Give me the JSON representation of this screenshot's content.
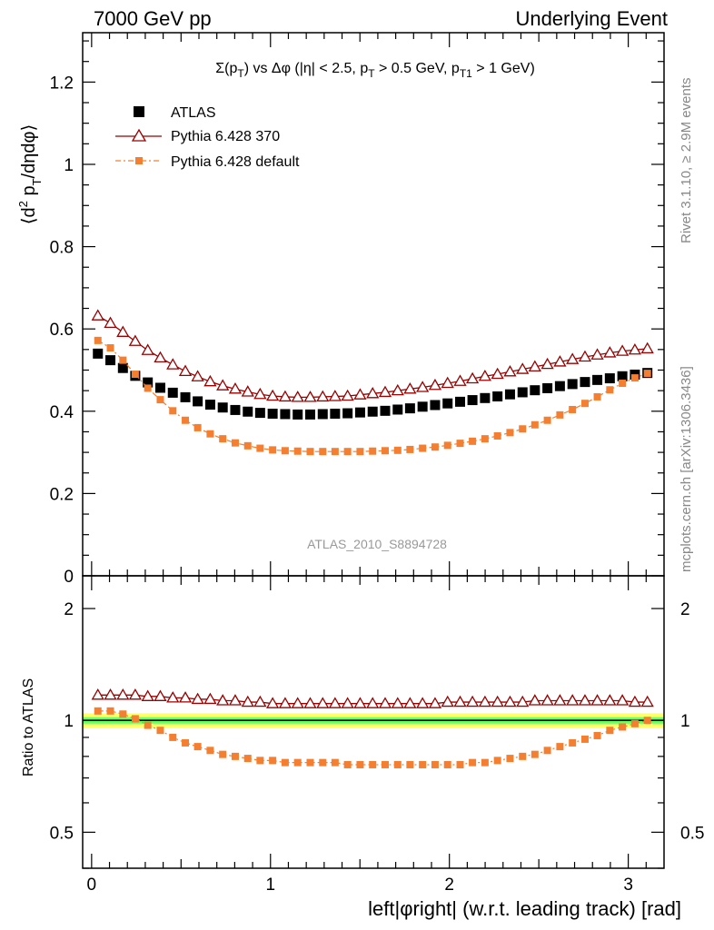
{
  "header": {
    "left": "7000 GeV pp",
    "right": "Underlying Event"
  },
  "side_labels": {
    "rivet": "Rivet 3.1.10, ≥ 2.9M events",
    "mcplots": "mcplots.cern.ch [arXiv:1306.3436]"
  },
  "colors": {
    "atlas": "#000000",
    "pythia_370": "#990000",
    "pythia_default": "#f57f30",
    "band_green": "#66ff66",
    "band_yellow": "#ffff66"
  },
  "chart_data": [
    {
      "type": "scatter",
      "panel": "main",
      "title": "Σ(p_T) vs Δφ (|η| < 2.5, p_T > 0.5 GeV, p_T1 > 1 GeV)",
      "ylabel": "⟨d² p_T/dηdφ⟩",
      "xlim": [
        -0.05,
        3.2
      ],
      "ylim": [
        0,
        1.32
      ],
      "yticks": [
        "0",
        "0.2",
        "0.4",
        "0.6",
        "0.8",
        "1",
        "1.2"
      ],
      "watermark": "ATLAS_2010_S8894728",
      "legend_position": "top-left",
      "x": [
        0.035,
        0.105,
        0.175,
        0.244,
        0.314,
        0.384,
        0.454,
        0.524,
        0.593,
        0.663,
        0.733,
        0.803,
        0.873,
        0.942,
        1.012,
        1.082,
        1.152,
        1.222,
        1.292,
        1.361,
        1.431,
        1.501,
        1.571,
        1.641,
        1.711,
        1.78,
        1.85,
        1.92,
        1.99,
        2.06,
        2.129,
        2.199,
        2.269,
        2.339,
        2.409,
        2.478,
        2.548,
        2.618,
        2.688,
        2.758,
        2.827,
        2.897,
        2.967,
        3.037,
        3.107
      ],
      "series": [
        {
          "name": "ATLAS",
          "marker": "square",
          "values": [
            0.54,
            0.524,
            0.505,
            0.486,
            0.47,
            0.457,
            0.445,
            0.434,
            0.424,
            0.416,
            0.409,
            0.403,
            0.399,
            0.396,
            0.394,
            0.393,
            0.392,
            0.392,
            0.393,
            0.394,
            0.395,
            0.397,
            0.399,
            0.401,
            0.404,
            0.407,
            0.411,
            0.415,
            0.419,
            0.423,
            0.427,
            0.432,
            0.436,
            0.441,
            0.446,
            0.451,
            0.456,
            0.461,
            0.466,
            0.471,
            0.476,
            0.48,
            0.485,
            0.489,
            0.493
          ]
        },
        {
          "name": "Pythia 6.428 370",
          "marker": "triangle",
          "values": [
            0.632,
            0.614,
            0.592,
            0.57,
            0.548,
            0.53,
            0.513,
            0.497,
            0.484,
            0.472,
            0.462,
            0.454,
            0.447,
            0.441,
            0.437,
            0.435,
            0.434,
            0.434,
            0.435,
            0.436,
            0.437,
            0.44,
            0.443,
            0.446,
            0.45,
            0.454,
            0.458,
            0.463,
            0.468,
            0.473,
            0.479,
            0.485,
            0.49,
            0.496,
            0.502,
            0.508,
            0.514,
            0.52,
            0.526,
            0.532,
            0.537,
            0.542,
            0.546,
            0.549,
            0.552
          ]
        },
        {
          "name": "Pythia 6.428 default",
          "marker": "small-square",
          "values": [
            0.572,
            0.554,
            0.524,
            0.49,
            0.456,
            0.428,
            0.401,
            0.378,
            0.36,
            0.345,
            0.333,
            0.323,
            0.316,
            0.31,
            0.306,
            0.304,
            0.303,
            0.302,
            0.302,
            0.302,
            0.302,
            0.302,
            0.303,
            0.304,
            0.305,
            0.307,
            0.31,
            0.313,
            0.317,
            0.322,
            0.327,
            0.333,
            0.34,
            0.348,
            0.357,
            0.367,
            0.378,
            0.391,
            0.404,
            0.419,
            0.435,
            0.452,
            0.468,
            0.481,
            0.492
          ]
        }
      ]
    },
    {
      "type": "scatter",
      "panel": "ratio",
      "ylabel": "Ratio to ATLAS",
      "xlabel": "left|φright| (w.r.t. leading track) [rad]",
      "xlim": [
        -0.05,
        3.2
      ],
      "ylim": [
        0.4,
        2.45
      ],
      "ylog": true,
      "yticks": [
        "0.5",
        "1",
        "2"
      ],
      "xticks": [
        "0",
        "1",
        "2",
        "3"
      ],
      "series": [
        {
          "name": "Pythia 6.428 370",
          "values": [
            1.17,
            1.17,
            1.17,
            1.17,
            1.16,
            1.16,
            1.15,
            1.15,
            1.14,
            1.14,
            1.13,
            1.13,
            1.12,
            1.12,
            1.11,
            1.11,
            1.11,
            1.11,
            1.11,
            1.11,
            1.11,
            1.11,
            1.11,
            1.11,
            1.11,
            1.11,
            1.11,
            1.11,
            1.12,
            1.12,
            1.12,
            1.12,
            1.12,
            1.12,
            1.12,
            1.13,
            1.13,
            1.13,
            1.13,
            1.13,
            1.13,
            1.13,
            1.13,
            1.12,
            1.12
          ]
        },
        {
          "name": "Pythia 6.428 default",
          "values": [
            1.06,
            1.06,
            1.04,
            1.01,
            0.97,
            0.94,
            0.9,
            0.87,
            0.85,
            0.83,
            0.81,
            0.8,
            0.79,
            0.78,
            0.78,
            0.77,
            0.77,
            0.77,
            0.77,
            0.77,
            0.76,
            0.76,
            0.76,
            0.76,
            0.76,
            0.76,
            0.76,
            0.76,
            0.76,
            0.76,
            0.77,
            0.77,
            0.78,
            0.79,
            0.8,
            0.81,
            0.83,
            0.85,
            0.87,
            0.89,
            0.91,
            0.94,
            0.96,
            0.98,
            1.0
          ]
        }
      ],
      "uncertainty_band": {
        "green": [
          0.98,
          1.02
        ],
        "yellow": [
          0.955,
          1.045
        ]
      }
    }
  ]
}
